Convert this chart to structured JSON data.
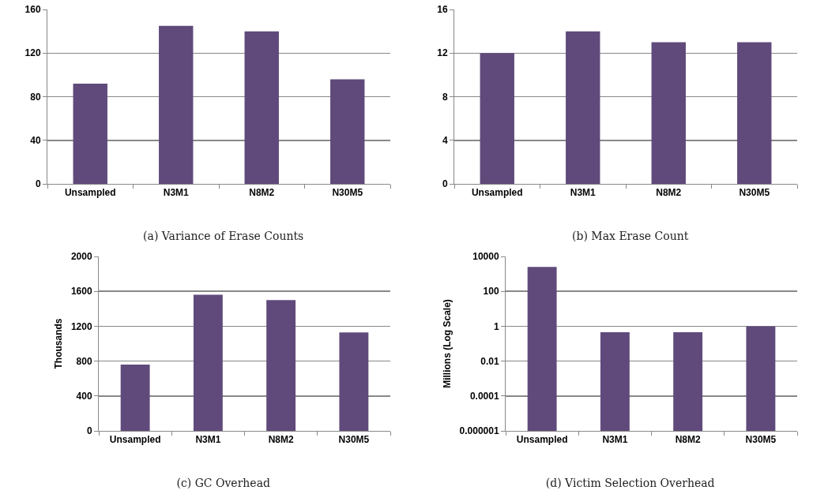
{
  "chart_data": [
    {
      "type": "bar",
      "title": "(a) Variance of Erase Counts",
      "categories": [
        "Unsampled",
        "N3M1",
        "N8M2",
        "N30M5"
      ],
      "values": [
        92,
        145,
        140,
        96
      ],
      "color": "#604a7b",
      "ylim": [
        0,
        160
      ],
      "yticks": [
        0,
        40,
        80,
        120,
        160
      ],
      "grid": "y"
    },
    {
      "type": "bar",
      "title": "(b) Max Erase Count",
      "categories": [
        "Unsampled",
        "N3M1",
        "N8M2",
        "N30M5"
      ],
      "values": [
        12,
        14,
        13,
        13
      ],
      "color": "#604a7b",
      "ylim": [
        0,
        16
      ],
      "yticks": [
        0,
        4,
        8,
        12,
        16
      ],
      "grid": "y"
    },
    {
      "type": "bar",
      "title": "(c) GC Overhead",
      "ylabel": "Thousands",
      "categories": [
        "Unsampled",
        "N3M1",
        "N8M2",
        "N30M5"
      ],
      "values": [
        760,
        1560,
        1500,
        1130
      ],
      "color": "#604a7b",
      "ylim": [
        0,
        2000
      ],
      "yticks": [
        0,
        400,
        800,
        1200,
        1600,
        2000
      ],
      "grid": "y"
    },
    {
      "type": "bar",
      "title": "(d) Victim Selection Overhead",
      "ylabel": "Millions (Log Scale)",
      "categories": [
        "Unsampled",
        "N3M1",
        "N8M2",
        "N30M5"
      ],
      "values": [
        2500,
        0.45,
        0.45,
        1
      ],
      "color": "#604a7b",
      "log": "y",
      "ylim": [
        1e-06,
        10000
      ],
      "yticks": [
        {
          "value": 1e-06,
          "label": "0.000001"
        },
        0.0001,
        0.01,
        1,
        100,
        10000
      ],
      "grid": "y"
    }
  ]
}
